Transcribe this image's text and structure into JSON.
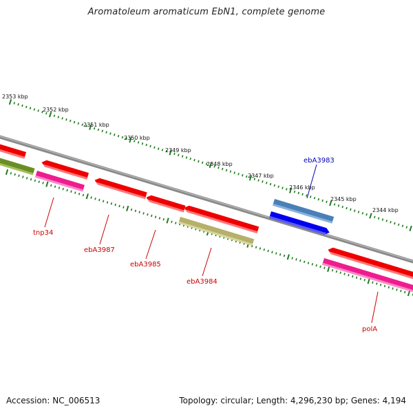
{
  "title": "Aromatoleum aromaticum EbN1, complete genome",
  "footer": {
    "accession": "Accession: NC_006513",
    "topology": "Topology: circular; Length: 4,296,230 bp; Genes: 4,194"
  },
  "colors": {
    "backbone": "#777777",
    "tick": "#1f7a1f",
    "red_gene": "#ee0000",
    "red_label": "#cc0000",
    "blue_label": "#0000bb"
  },
  "scale_labels": [
    "2353 kbp",
    "2352 kbp",
    "2351 kbp",
    "2350 kbp",
    "2349 kbp",
    "2348 kbp",
    "2347 kbp",
    "2346 kbp",
    "2345 kbp",
    "2344 kbp"
  ],
  "gene_labels": [
    {
      "text": "tnp34",
      "color": "red"
    },
    {
      "text": "ebA3987",
      "color": "red"
    },
    {
      "text": "ebA3985",
      "color": "red"
    },
    {
      "text": "ebA3984",
      "color": "red"
    },
    {
      "text": "ebA3983",
      "color": "blue"
    },
    {
      "text": "polA",
      "color": "red"
    }
  ]
}
